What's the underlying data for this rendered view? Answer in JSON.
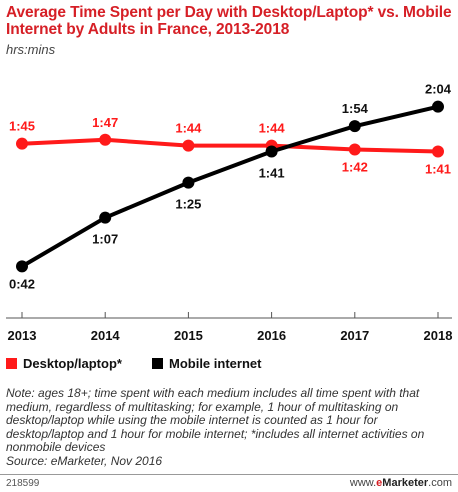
{
  "title": "Average Time Spent per Day with Desktop/Laptop* vs. Mobile Internet by Adults in France, 2013-2018",
  "subtitle": "hrs:mins",
  "chart_data": {
    "type": "line",
    "x": [
      "2013",
      "2014",
      "2015",
      "2016",
      "2017",
      "2018"
    ],
    "series": [
      {
        "name": "Desktop/laptop*",
        "color": "#ff1a1a",
        "values": [
          105,
          107,
          104,
          104,
          102,
          101
        ],
        "labels": [
          "1:45",
          "1:47",
          "1:44",
          "1:44",
          "1:42",
          "1:41"
        ]
      },
      {
        "name": "Mobile internet",
        "color": "#000000",
        "values": [
          42,
          67,
          85,
          101,
          114,
          124
        ],
        "labels": [
          "0:42",
          "1:07",
          "1:25",
          "1:41",
          "1:54",
          "2:04"
        ]
      }
    ],
    "ylim": [
      35,
      130
    ],
    "grid": false,
    "legend": "bottom-left"
  },
  "note": "Note: ages 18+; time spent with each medium includes all time spent with that medium, regardless of multitasking; for example, 1 hour of multitasking on desktop/laptop while using the mobile internet is counted as 1 hour for desktop/laptop and 1 hour for mobile internet; *includes all internet activities on nonmobile devices",
  "source": "Source: eMarketer, Nov 2016",
  "footer": {
    "id": "218599",
    "brand_prefix": "www.",
    "brand_e": "e",
    "brand_marketer": "Marketer",
    "brand_suffix": ".com"
  }
}
